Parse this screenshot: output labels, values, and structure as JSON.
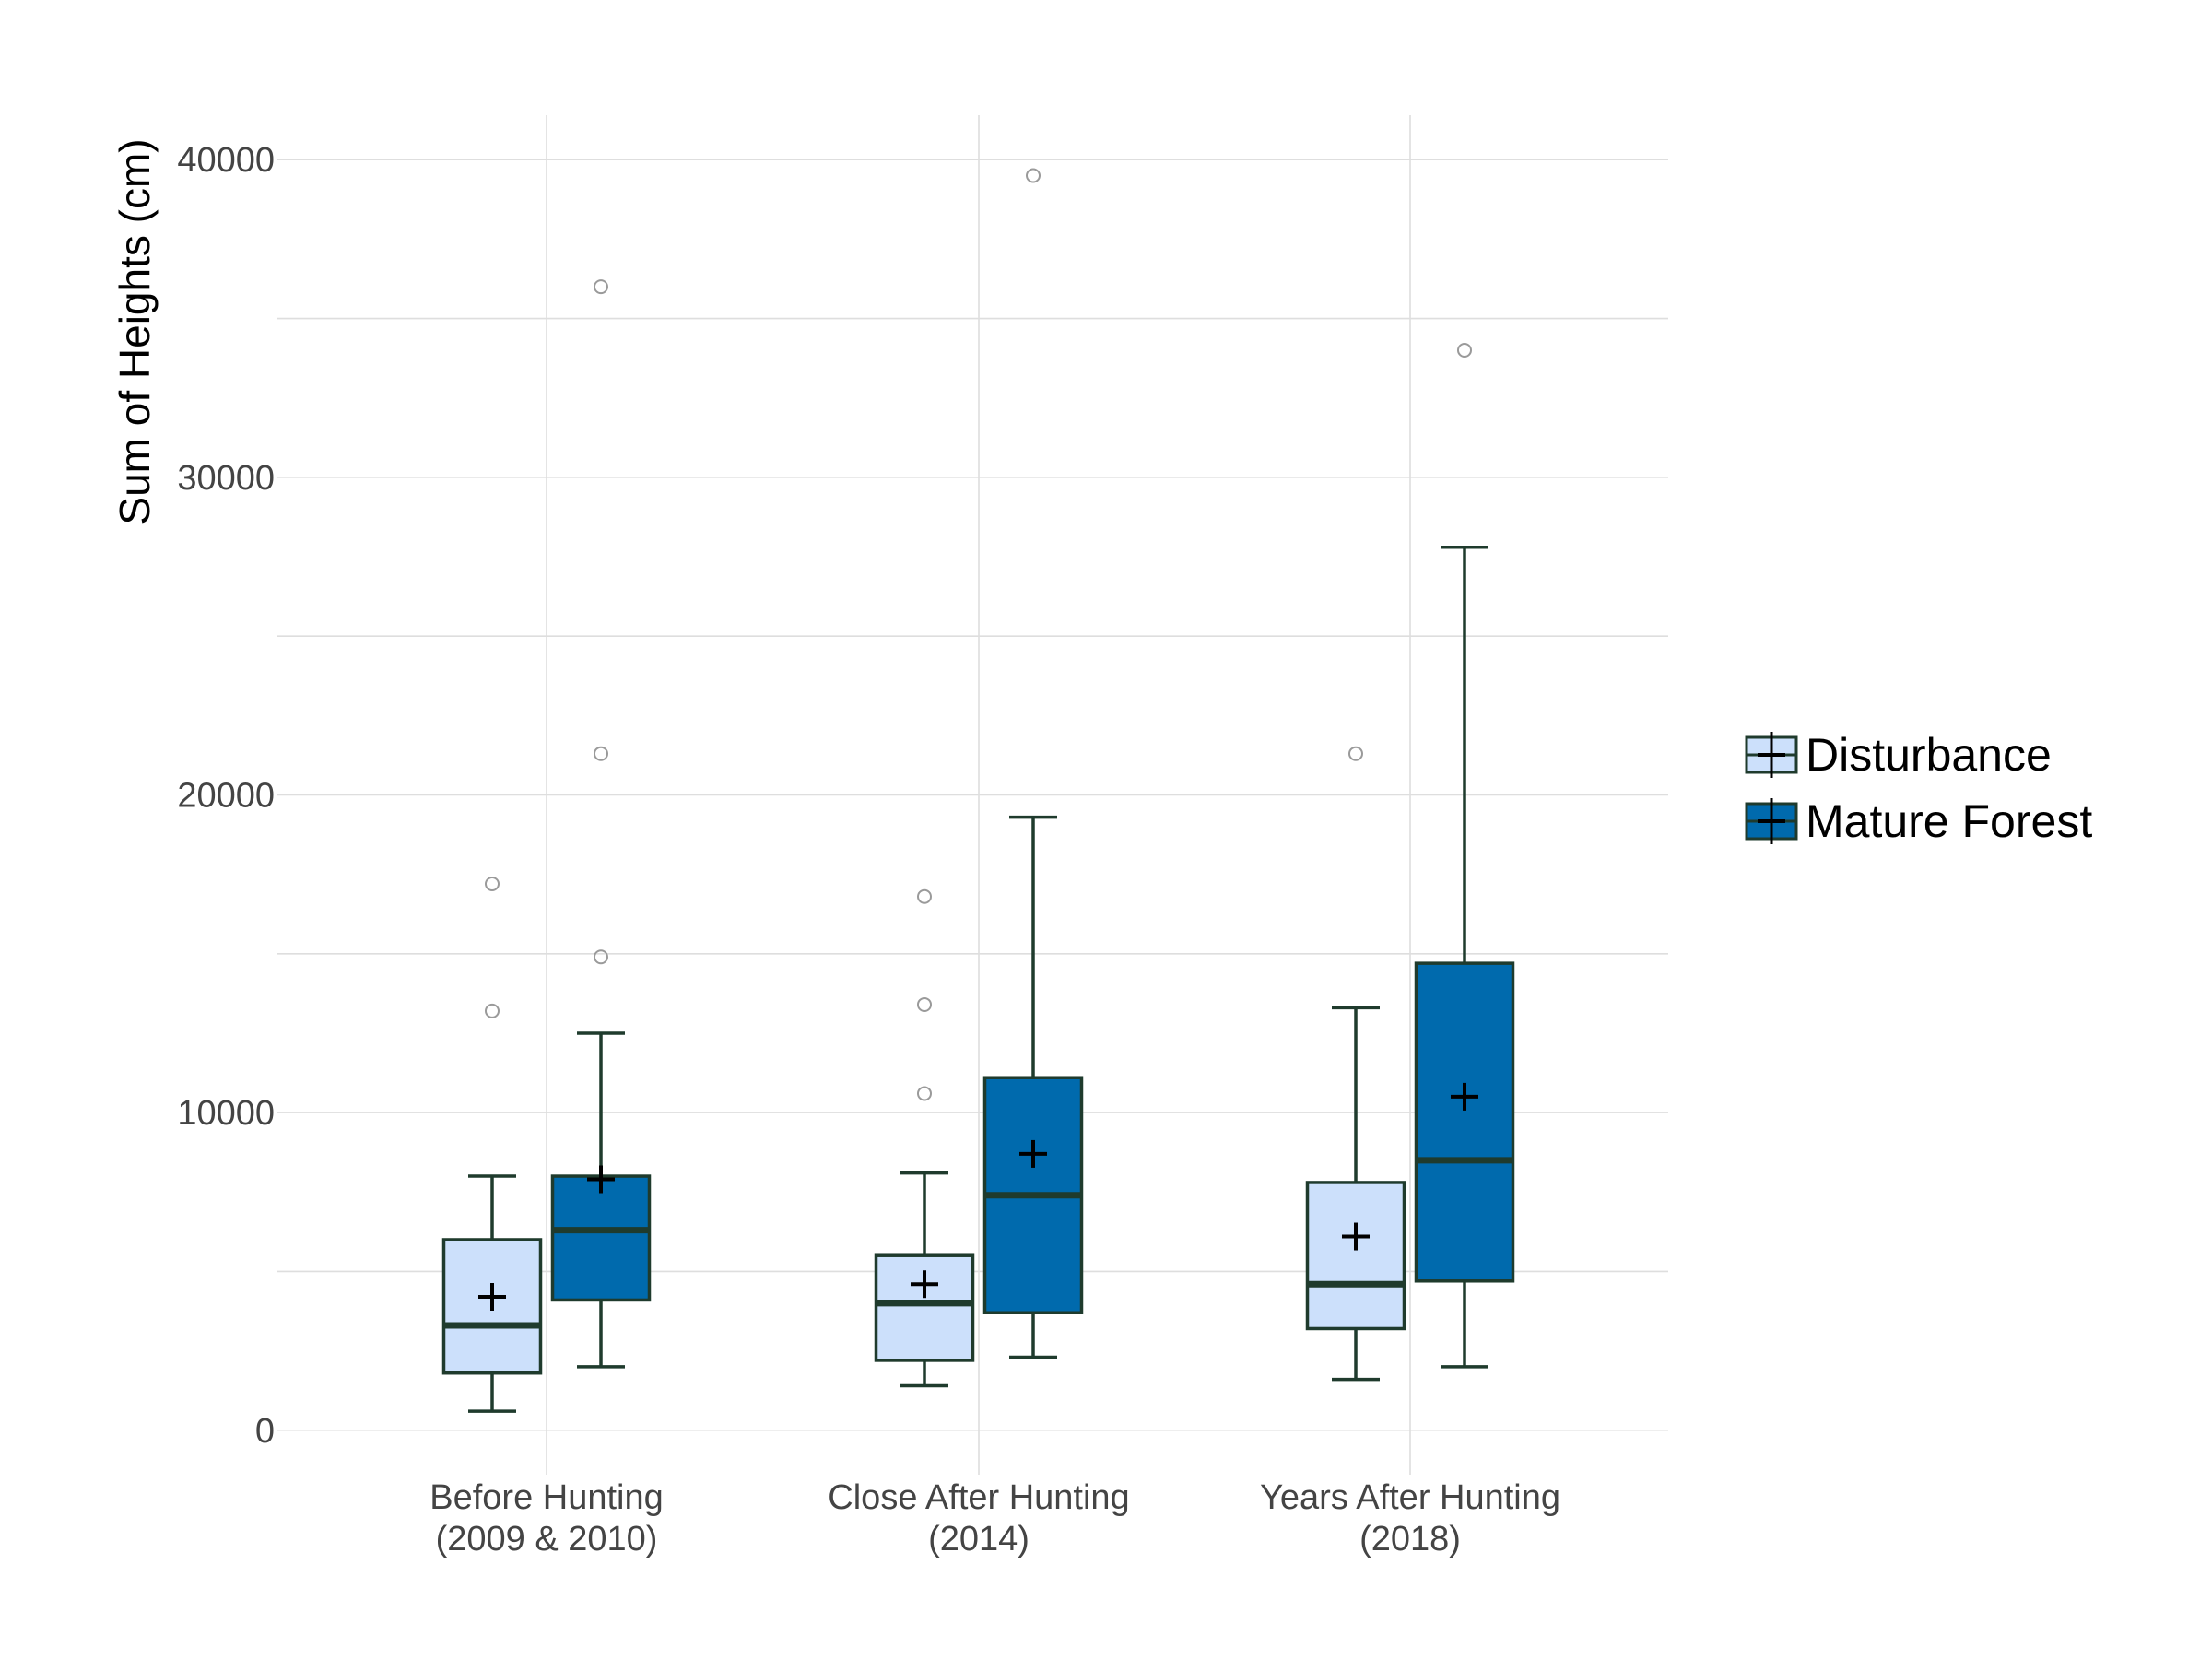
{
  "chart_data": {
    "type": "box",
    "title": "",
    "xlabel": "",
    "ylabel": "Sum of Heights (cm)",
    "ylim": [
      -1400,
      41400
    ],
    "yticks": [
      0,
      10000,
      20000,
      30000,
      40000
    ],
    "y_tick_labels": [
      "0",
      "10000",
      "20000",
      "30000",
      "40000"
    ],
    "grid": true,
    "legend_position": "right",
    "categories": [
      [
        "Before Hunting",
        "(2009 & 2010)"
      ],
      [
        "Close After Hunting",
        "(2014)"
      ],
      [
        "Years After Hunting",
        "(2018)"
      ]
    ],
    "series": [
      {
        "name": "Disturbance",
        "color": "#cce0fb",
        "boxes": [
          {
            "min": 600,
            "q1": 1800,
            "median": 3300,
            "q3": 6000,
            "max": 8000,
            "mean": 4200,
            "outliers": [
              13200,
              17200
            ]
          },
          {
            "min": 1400,
            "q1": 2200,
            "median": 4000,
            "q3": 5500,
            "max": 8100,
            "mean": 4600,
            "outliers": [
              10600,
              13400,
              16800
            ]
          },
          {
            "min": 1600,
            "q1": 3200,
            "median": 4600,
            "q3": 7800,
            "max": 13300,
            "mean": 6100,
            "outliers": [
              21300
            ]
          }
        ]
      },
      {
        "name": "Mature Forest",
        "color": "#006aad",
        "boxes": [
          {
            "min": 2000,
            "q1": 4100,
            "median": 6300,
            "q3": 8000,
            "max": 12500,
            "mean": 7900,
            "outliers": [
              14900,
              21300,
              36000
            ]
          },
          {
            "min": 2300,
            "q1": 3700,
            "median": 7400,
            "q3": 11100,
            "max": 19300,
            "mean": 8700,
            "outliers": [
              39500
            ]
          },
          {
            "min": 2000,
            "q1": 4700,
            "median": 8500,
            "q3": 14700,
            "max": 27800,
            "mean": 10500,
            "outliers": [
              34000
            ]
          }
        ]
      }
    ],
    "colors": {
      "box_outline": "#1f3b2d",
      "grid": "#dedede",
      "outlier": "#9a9a9a",
      "mean_marker": "#000000"
    }
  }
}
